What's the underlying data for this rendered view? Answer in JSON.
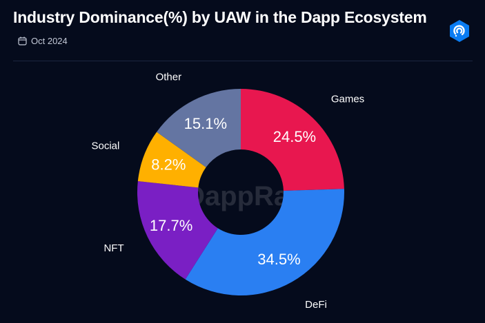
{
  "header": {
    "title": "Industry Dominance(%) by UAW in the Dapp Ecosystem",
    "date": "Oct 2024",
    "date_icon": "calendar-icon",
    "logo_icon": "dappradar-logo-icon"
  },
  "watermark": "DappRadar",
  "chart_data": {
    "type": "pie",
    "donut": true,
    "categories": [
      "Games",
      "DeFi",
      "NFT",
      "Social",
      "Other"
    ],
    "values": [
      24.5,
      34.5,
      17.7,
      8.2,
      15.1
    ],
    "value_labels": [
      "24.5%",
      "34.5%",
      "17.7%",
      "8.2%",
      "15.1%"
    ],
    "colors": [
      "#e8174f",
      "#2a7ff2",
      "#7a1fc4",
      "#ffb000",
      "#6475a2"
    ],
    "title": "Industry Dominance(%) by UAW in the Dapp Ecosystem",
    "xlabel": "",
    "ylabel": "",
    "legend": "none"
  }
}
